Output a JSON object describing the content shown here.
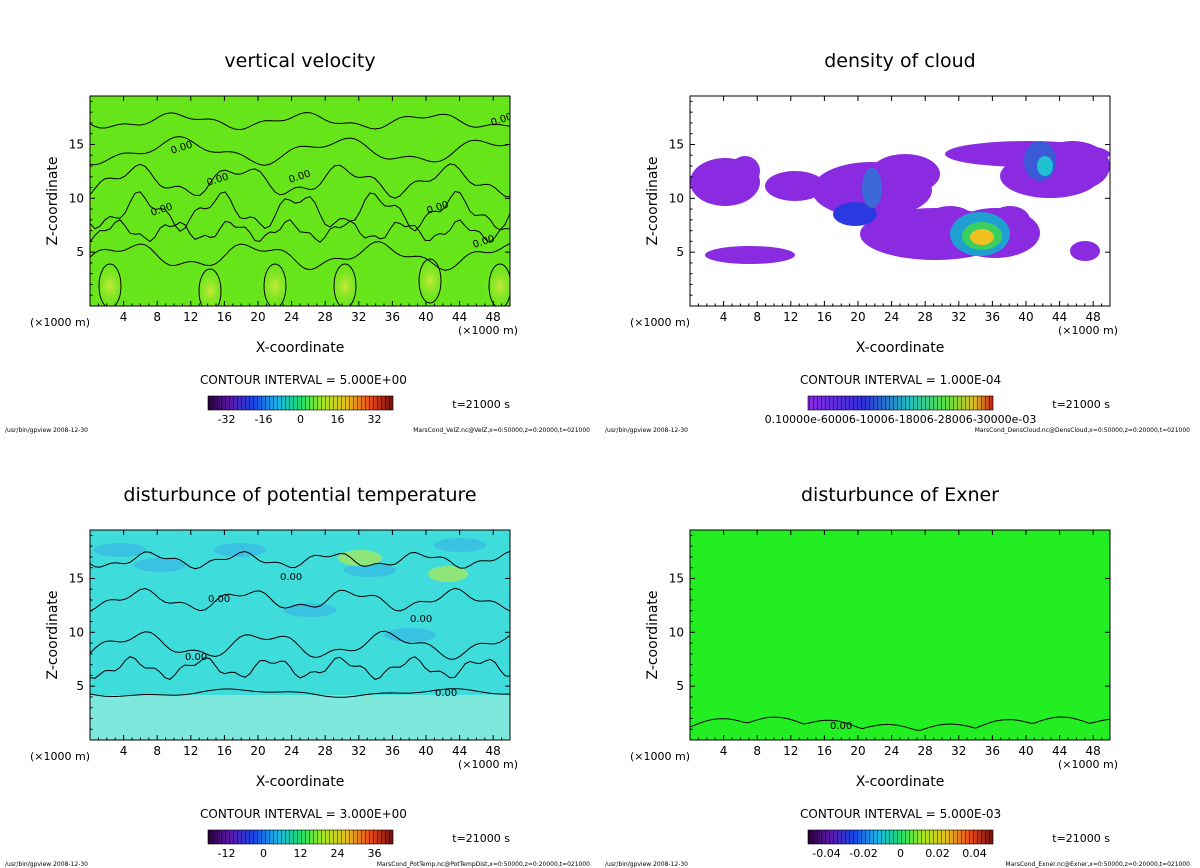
{
  "chart_data": [
    {
      "type": "heatmap",
      "title": "vertical velocity",
      "xlabel": "X-coordinate",
      "ylabel": "Z-coordinate",
      "x_unit_left": "(×1000 m)",
      "x_unit_right": "(×1000 m)",
      "xlim": [
        0,
        50
      ],
      "ylim": [
        0,
        19.5
      ],
      "xticks": [
        "4",
        "8",
        "12",
        "16",
        "20",
        "24",
        "28",
        "32",
        "36",
        "40",
        "44",
        "48"
      ],
      "yticks": [
        "5",
        "10",
        "15"
      ],
      "contour_interval": "CONTOUR INTERVAL = 5.000E+00",
      "time_label": "t=21000 s",
      "colorbar_labels": [
        "-32",
        "-16",
        "0",
        "16",
        "32"
      ],
      "colorbar_range": [
        -40,
        40
      ],
      "field_color": "#66e61a",
      "contour_labels": [
        "0.00",
        "0.00",
        "0.00",
        "0.00",
        "0.00",
        "0.00",
        "0.00"
      ],
      "footer_left": "/usr/bin/gpview  2008-12-30",
      "footer_right": "MarsCond_VelZ.nc@VelZ,x=0:50000,z=0:20000,t=021000"
    },
    {
      "type": "heatmap",
      "title": "density of cloud",
      "xlabel": "X-coordinate",
      "ylabel": "Z-coordinate",
      "x_unit_left": "(×1000 m)",
      "x_unit_right": "(×1000 m)",
      "xlim": [
        0,
        50
      ],
      "ylim": [
        0,
        19.5
      ],
      "xticks": [
        "4",
        "8",
        "12",
        "16",
        "20",
        "24",
        "28",
        "32",
        "36",
        "40",
        "44",
        "48"
      ],
      "yticks": [
        "5",
        "10",
        "15"
      ],
      "contour_interval": "CONTOUR INTERVAL = 1.000E-04",
      "time_label": "t=21000 s",
      "colorbar_labels": [
        "0.10000e-60006-10006-18006-28006-30000e-03"
      ],
      "colorbar_range": [
        0,
        0.0003
      ],
      "field_color": "#8a2be2",
      "footer_left": "/usr/bin/gpview  2008-12-30",
      "footer_right": "MarsCond_DensCloud.nc@DensCloud,x=0:50000,z=0:20000,t=021000"
    },
    {
      "type": "heatmap",
      "title": "disturbunce of potential temperature",
      "xlabel": "X-coordinate",
      "ylabel": "Z-coordinate",
      "x_unit_left": "(×1000 m)",
      "x_unit_right": "(×1000 m)",
      "xlim": [
        0,
        50
      ],
      "ylim": [
        0,
        19.5
      ],
      "xticks": [
        "4",
        "8",
        "12",
        "16",
        "20",
        "24",
        "28",
        "32",
        "36",
        "40",
        "44",
        "48"
      ],
      "yticks": [
        "5",
        "10",
        "15"
      ],
      "contour_interval": "CONTOUR INTERVAL = 3.000E+00",
      "time_label": "t=21000 s",
      "colorbar_labels": [
        "-12",
        "0",
        "12",
        "24",
        "36"
      ],
      "colorbar_range": [
        -18,
        42
      ],
      "field_color": "#3fdcdc",
      "contour_labels": [
        "0.00",
        "0.00",
        "0.00",
        "0.00",
        "0.00"
      ],
      "footer_left": "/usr/bin/gpview  2008-12-30",
      "footer_right": "MarsCond_PotTemp.nc@PotTempDist,x=0:50000,z=0:20000,t=021000"
    },
    {
      "type": "heatmap",
      "title": "disturbunce of Exner",
      "xlabel": "X-coordinate",
      "ylabel": "Z-coordinate",
      "x_unit_left": "(×1000 m)",
      "x_unit_right": "(×1000 m)",
      "xlim": [
        0,
        50
      ],
      "ylim": [
        0,
        19.5
      ],
      "xticks": [
        "4",
        "8",
        "12",
        "16",
        "20",
        "24",
        "28",
        "32",
        "36",
        "40",
        "44",
        "48"
      ],
      "yticks": [
        "5",
        "10",
        "15"
      ],
      "contour_interval": "CONTOUR INTERVAL = 5.000E-03",
      "time_label": "t=21000 s",
      "colorbar_labels": [
        "-0.04",
        "-0.02",
        "0",
        "0.02",
        "0.04"
      ],
      "colorbar_range": [
        -0.05,
        0.05
      ],
      "field_color": "#22ee22",
      "contour_labels": [
        "0.00"
      ],
      "footer_left": "/usr/bin/gpview  2008-12-30",
      "footer_right": "MarsCond_Exner.nc@Exner,x=0:50000,z=0:20000,t=021000"
    }
  ]
}
